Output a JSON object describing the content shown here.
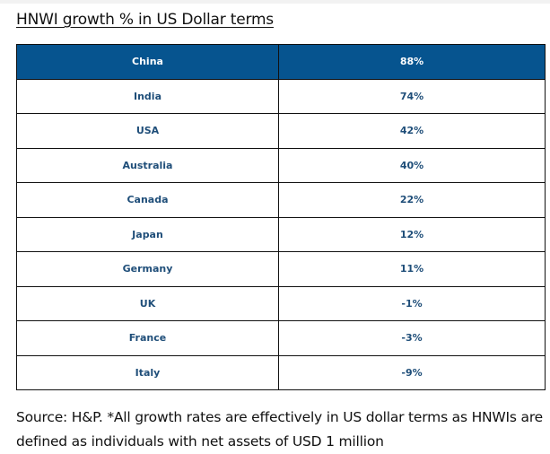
{
  "title": "HNWI growth % in US Dollar terms",
  "table": {
    "rows": [
      {
        "country": "China",
        "growth": "88%"
      },
      {
        "country": "India",
        "growth": "74%"
      },
      {
        "country": "USA",
        "growth": "42%"
      },
      {
        "country": "Australia",
        "growth": "40%"
      },
      {
        "country": "Canada",
        "growth": "22%"
      },
      {
        "country": "Japan",
        "growth": "12%"
      },
      {
        "country": "Germany",
        "growth": "11%"
      },
      {
        "country": "UK",
        "growth": "-1%"
      },
      {
        "country": "France",
        "growth": "-3%"
      },
      {
        "country": "Italy",
        "growth": "-9%"
      }
    ],
    "header_color": "#06548f",
    "text_color": "#1f4e79"
  },
  "source_note": "Source: H&P. *All growth rates are effectively in US dollar terms as HNWIs are defined as individuals with net assets of USD 1 million"
}
